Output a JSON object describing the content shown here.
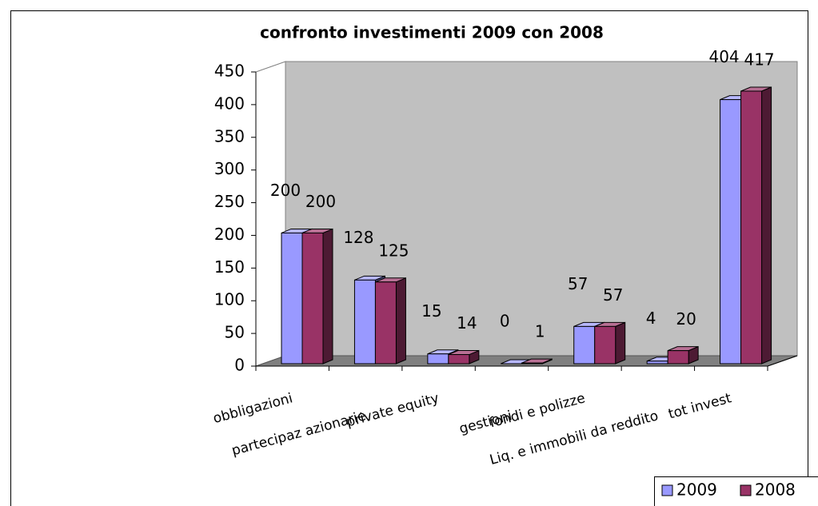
{
  "chart_data": {
    "type": "bar3d",
    "title": "confronto investimenti 2009 con 2008",
    "categories": [
      "obbligazioni",
      "partecipaz azionarie",
      "private equity",
      "gestioni",
      "fondi e polizze",
      "Liq. e immobili da reddito",
      "tot invest"
    ],
    "series": [
      {
        "name": "2009",
        "color": "#9999ff",
        "values": [
          200,
          128,
          15,
          0,
          57,
          4,
          404
        ]
      },
      {
        "name": "2008",
        "color": "#993366",
        "values": [
          200,
          125,
          14,
          1,
          57,
          20,
          417
        ]
      }
    ],
    "ylim": [
      0,
      450
    ],
    "yticks": [
      0,
      50,
      100,
      150,
      200,
      250,
      300,
      350,
      400,
      450
    ],
    "legend": "bottom-right"
  }
}
